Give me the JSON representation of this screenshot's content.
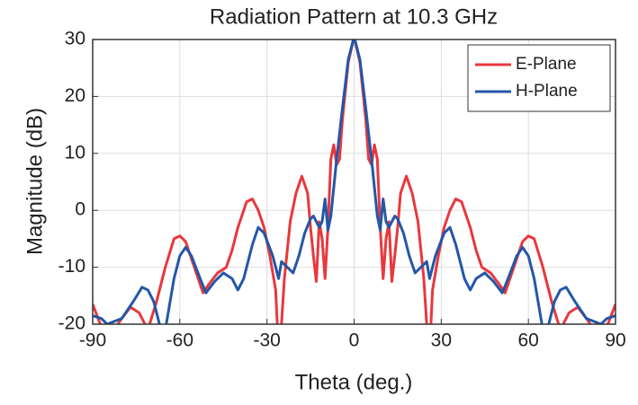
{
  "chart_data": {
    "type": "line",
    "title": "Radiation Pattern at 10.3 GHz",
    "x_label": "Theta (deg.)",
    "y_label": "Magnitude (dB)",
    "xlim": [
      -90,
      90
    ],
    "xticks": [
      -90,
      -60,
      -30,
      0,
      30,
      60,
      90
    ],
    "ylim": [
      -20,
      30
    ],
    "yticks": [
      -20,
      -10,
      0,
      10,
      20,
      30
    ],
    "grid": true,
    "legend": "upper right",
    "series": [
      {
        "name": "E-Plane",
        "color": "#e8383d",
        "x": [
          -90,
          -87,
          -84,
          -80,
          -77,
          -74,
          -71,
          -68,
          -65,
          -62,
          -60,
          -58,
          -55,
          -52,
          -50,
          -47,
          -44,
          -42,
          -40,
          -37,
          -35,
          -33,
          -31,
          -29,
          -27,
          -26,
          -25,
          -24,
          -22,
          -20,
          -18,
          -16,
          -15,
          -14,
          -13,
          -12,
          -11,
          -10,
          -9,
          -8,
          -7,
          -6,
          -5,
          -4,
          -2,
          0,
          2,
          4,
          5,
          6,
          7,
          8,
          9,
          10,
          11,
          12,
          13,
          14,
          15,
          16,
          18,
          20,
          22,
          24,
          25,
          26,
          27,
          29,
          31,
          33,
          35,
          37,
          40,
          42,
          44,
          47,
          50,
          52,
          55,
          58,
          60,
          62,
          65,
          68,
          71,
          74,
          77,
          80,
          84,
          87,
          90
        ],
        "values": [
          -16.5,
          -20.5,
          -22,
          -19,
          -17,
          -18,
          -21,
          -16,
          -10,
          -5,
          -4.5,
          -5.5,
          -10,
          -14.5,
          -13,
          -11,
          -10,
          -7,
          -3,
          1.5,
          2,
          0,
          -3,
          -8,
          -14,
          -25,
          -20,
          -12,
          -2,
          3,
          6,
          3,
          -3,
          -8,
          -12.5,
          -2,
          -5,
          -12,
          -3,
          9,
          11.5,
          8,
          9,
          16,
          26,
          30.5,
          26,
          16,
          9,
          8,
          11.5,
          9,
          -3,
          -12,
          -5,
          -2,
          -12.5,
          -8,
          -3,
          3,
          6,
          3,
          -2,
          -12,
          -20,
          -25,
          -14,
          -8,
          -3,
          0,
          2,
          1.5,
          -3,
          -7,
          -10,
          -11,
          -13,
          -14.5,
          -10,
          -5.5,
          -4.5,
          -5,
          -10,
          -16,
          -21,
          -18,
          -17,
          -19,
          -22,
          -20.5,
          -16.5
        ]
      },
      {
        "name": "H-Plane",
        "color": "#2357a8",
        "x": [
          -90,
          -87,
          -85,
          -80,
          -76,
          -73,
          -71,
          -69,
          -67,
          -65,
          -62,
          -60,
          -58,
          -56,
          -53,
          -51,
          -48,
          -45,
          -42,
          -40,
          -38,
          -35,
          -33,
          -31,
          -28,
          -26,
          -25,
          -23,
          -21,
          -19,
          -17,
          -15,
          -14,
          -12,
          -11,
          -10,
          -9,
          -8,
          -6,
          -4,
          -2,
          0,
          2,
          4,
          6,
          8,
          9,
          10,
          11,
          12,
          14,
          15,
          17,
          19,
          21,
          23,
          25,
          26,
          28,
          31,
          33,
          35,
          38,
          40,
          42,
          45,
          48,
          51,
          53,
          56,
          58,
          60,
          62,
          65,
          67,
          69,
          71,
          73,
          76,
          80,
          85,
          87,
          90
        ],
        "values": [
          -18.5,
          -19,
          -20,
          -19,
          -16,
          -13.5,
          -14,
          -16,
          -20,
          -21,
          -12,
          -8,
          -6.5,
          -8,
          -12,
          -14.5,
          -12.5,
          -11,
          -12,
          -14,
          -12,
          -6,
          -3,
          -4,
          -8,
          -12,
          -9,
          -10,
          -11,
          -8,
          -4,
          -1.5,
          -1,
          -3,
          -2,
          2,
          -3.5,
          -1,
          9,
          18,
          26.5,
          30.5,
          26.5,
          18,
          9,
          -1,
          -3.5,
          2,
          -2,
          -3,
          -1,
          -1.5,
          -4,
          -8,
          -11,
          -10,
          -9,
          -12,
          -8,
          -4,
          -3,
          -6,
          -12,
          -14,
          -12,
          -11,
          -12.5,
          -14.5,
          -12,
          -8,
          -6.5,
          -8,
          -12,
          -21,
          -20,
          -16,
          -14,
          -13.5,
          -16,
          -19,
          -20,
          -19,
          -18.5
        ]
      }
    ]
  }
}
